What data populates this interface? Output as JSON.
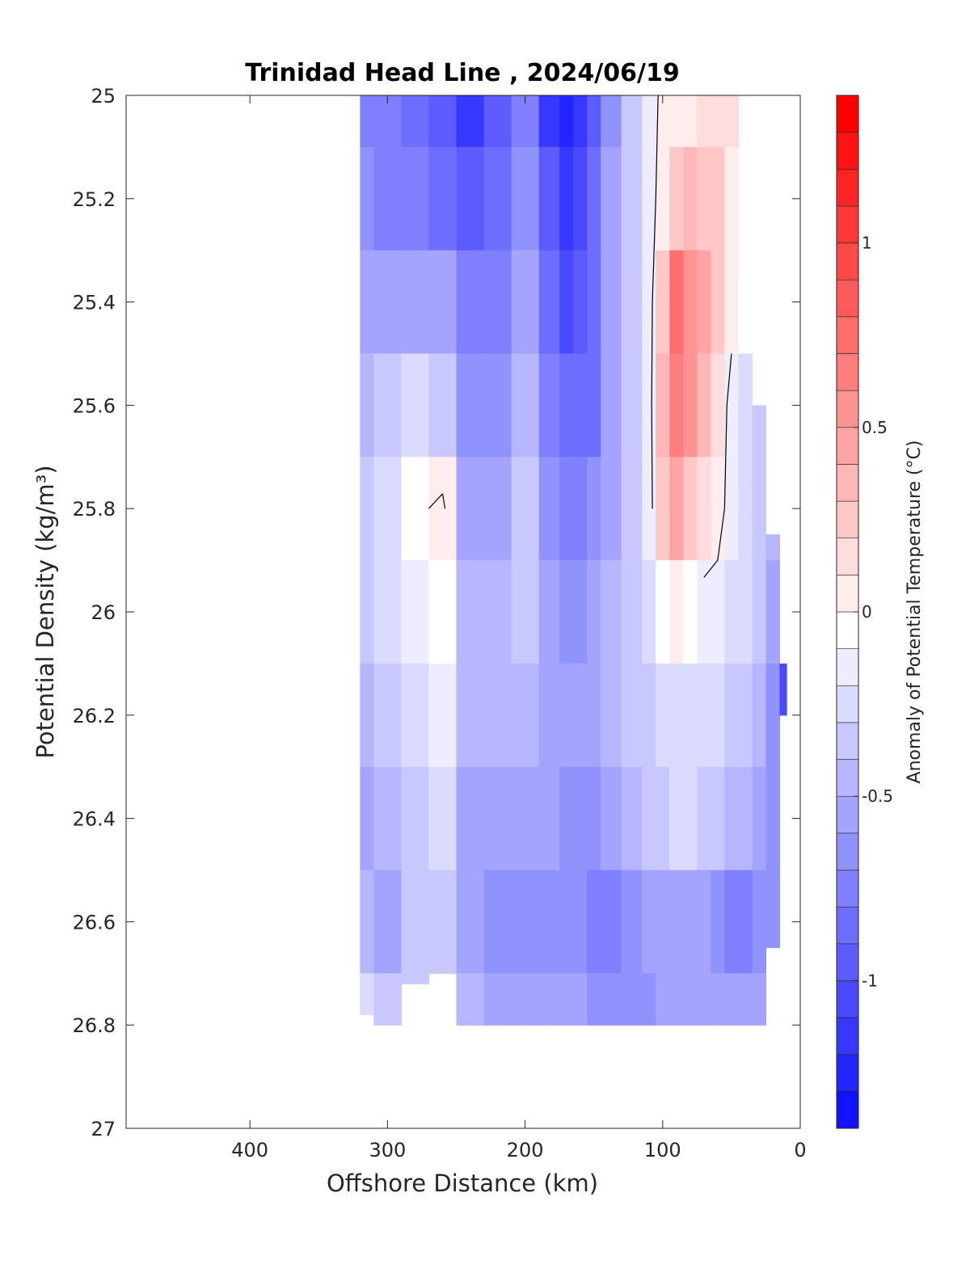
{
  "chart_data": {
    "type": "heatmap",
    "title": "Trinidad Head Line , 2024/06/19",
    "xlabel": "Offshore Distance (km)",
    "ylabel": "Potential Density (kg/m³)",
    "colorbar_label": "Anomaly of Potential Temperature (°C)",
    "x_reversed": true,
    "y_reversed": true,
    "xlim": [
      490,
      0
    ],
    "ylim": [
      25,
      27
    ],
    "xticks": [
      400,
      300,
      200,
      100,
      0
    ],
    "yticks": [
      25,
      25.2,
      25.4,
      25.6,
      25.8,
      26,
      26.2,
      26.4,
      26.6,
      26.8,
      27
    ],
    "clim": [
      -1.4,
      1.4
    ],
    "colorbar_ticks": [
      -1,
      -0.5,
      0,
      0.5,
      1
    ],
    "contour_interval": 0.1,
    "colormap": {
      "negative": "#0000ff",
      "zero": "#ffffff",
      "positive": "#ff0000"
    },
    "contour_line_color": "#000000",
    "contour_line_level": 0,
    "field": {
      "x": [
        320,
        300,
        280,
        260,
        240,
        220,
        200,
        180,
        170,
        160,
        150,
        140,
        120,
        110,
        100,
        90,
        80,
        70,
        60,
        50,
        40,
        30,
        20,
        10
      ],
      "y": [
        25.0,
        25.2,
        25.4,
        25.6,
        25.8,
        26.0,
        26.2,
        26.4,
        26.6,
        26.8
      ],
      "bottom_depth": [
        26.78,
        26.8,
        26.72,
        26.7,
        26.8,
        26.8,
        26.8,
        26.8,
        26.8,
        26.8,
        26.8,
        26.8,
        26.8,
        26.8,
        26.8,
        26.8,
        26.8,
        26.8,
        26.8,
        26.8,
        26.8,
        26.8,
        26.65,
        26.2
      ],
      "top_depth": [
        25.0,
        25.0,
        25.0,
        25.0,
        25.0,
        25.0,
        25.0,
        25.0,
        25.0,
        25.0,
        25.0,
        25.0,
        25.0,
        25.0,
        25.0,
        25.0,
        25.0,
        25.0,
        25.0,
        25.0,
        25.35,
        25.6,
        25.85,
        26.1
      ],
      "values": [
        [
          -0.7,
          -0.7,
          -0.8,
          -0.9,
          -1.1,
          -0.9,
          -0.7,
          -1.1,
          -1.2,
          -1.1,
          -0.9,
          -0.6,
          -0.3,
          -0.1,
          0.05,
          0.05,
          0.1,
          0.2,
          0.2,
          0.2,
          0.1,
          0.0,
          -0.2,
          -0.3
        ],
        [
          -0.6,
          -0.7,
          -0.7,
          -0.8,
          -0.9,
          -0.8,
          -0.6,
          -0.9,
          -1.1,
          -1.0,
          -0.8,
          -0.5,
          -0.3,
          -0.1,
          0.1,
          0.3,
          0.4,
          0.3,
          0.25,
          0.15,
          0.1,
          0.0,
          -0.2,
          -0.3
        ],
        [
          -0.5,
          -0.5,
          -0.5,
          -0.5,
          -0.7,
          -0.7,
          -0.5,
          -0.8,
          -1.0,
          -0.9,
          -0.8,
          -0.5,
          -0.3,
          -0.1,
          0.3,
          0.8,
          0.6,
          0.5,
          0.3,
          0.1,
          0.0,
          -0.1,
          -0.3,
          -0.4
        ],
        [
          -0.4,
          -0.3,
          -0.2,
          -0.3,
          -0.6,
          -0.6,
          -0.4,
          -0.7,
          -0.8,
          -0.8,
          -0.8,
          -0.5,
          -0.3,
          -0.1,
          0.4,
          0.7,
          0.6,
          0.4,
          0.2,
          -0.1,
          -0.2,
          -0.3,
          -0.4,
          -0.5
        ],
        [
          -0.3,
          -0.2,
          -0.05,
          0.05,
          -0.5,
          -0.5,
          -0.3,
          -0.6,
          -0.7,
          -0.7,
          -0.6,
          -0.5,
          -0.3,
          -0.1,
          0.3,
          0.5,
          0.3,
          0.2,
          0.1,
          -0.1,
          -0.2,
          -0.3,
          -0.4,
          -0.6
        ],
        [
          -0.3,
          -0.2,
          -0.1,
          0.0,
          -0.4,
          -0.4,
          -0.3,
          -0.5,
          -0.6,
          -0.6,
          -0.5,
          -0.4,
          -0.3,
          -0.2,
          0.0,
          0.1,
          0.0,
          -0.1,
          -0.1,
          -0.2,
          -0.2,
          -0.3,
          -0.5,
          -0.7
        ],
        [
          -0.4,
          -0.3,
          -0.2,
          -0.1,
          -0.4,
          -0.4,
          -0.4,
          -0.5,
          -0.5,
          -0.5,
          -0.5,
          -0.4,
          -0.3,
          -0.3,
          -0.2,
          -0.2,
          -0.2,
          -0.2,
          -0.2,
          -0.3,
          -0.3,
          -0.4,
          -0.6,
          -1.0
        ],
        [
          -0.5,
          -0.4,
          -0.3,
          -0.2,
          -0.5,
          -0.5,
          -0.5,
          -0.5,
          -0.6,
          -0.6,
          -0.6,
          -0.5,
          -0.4,
          -0.3,
          -0.3,
          -0.2,
          -0.2,
          -0.3,
          -0.3,
          -0.4,
          -0.4,
          -0.5,
          -0.6,
          -0.8
        ],
        [
          -0.4,
          -0.5,
          -0.3,
          -0.3,
          -0.5,
          -0.6,
          -0.6,
          -0.6,
          -0.6,
          -0.6,
          -0.7,
          -0.7,
          -0.6,
          -0.5,
          -0.5,
          -0.5,
          -0.5,
          -0.5,
          -0.6,
          -0.7,
          -0.7,
          -0.6,
          -0.6,
          -0.7
        ],
        [
          -0.2,
          -0.3,
          -0.3,
          -0.3,
          -0.4,
          -0.5,
          -0.5,
          -0.5,
          -0.5,
          -0.5,
          -0.6,
          -0.6,
          -0.6,
          -0.6,
          -0.5,
          -0.5,
          -0.5,
          -0.5,
          -0.5,
          -0.5,
          -0.5,
          -0.5,
          -0.5,
          -0.6
        ]
      ]
    }
  }
}
